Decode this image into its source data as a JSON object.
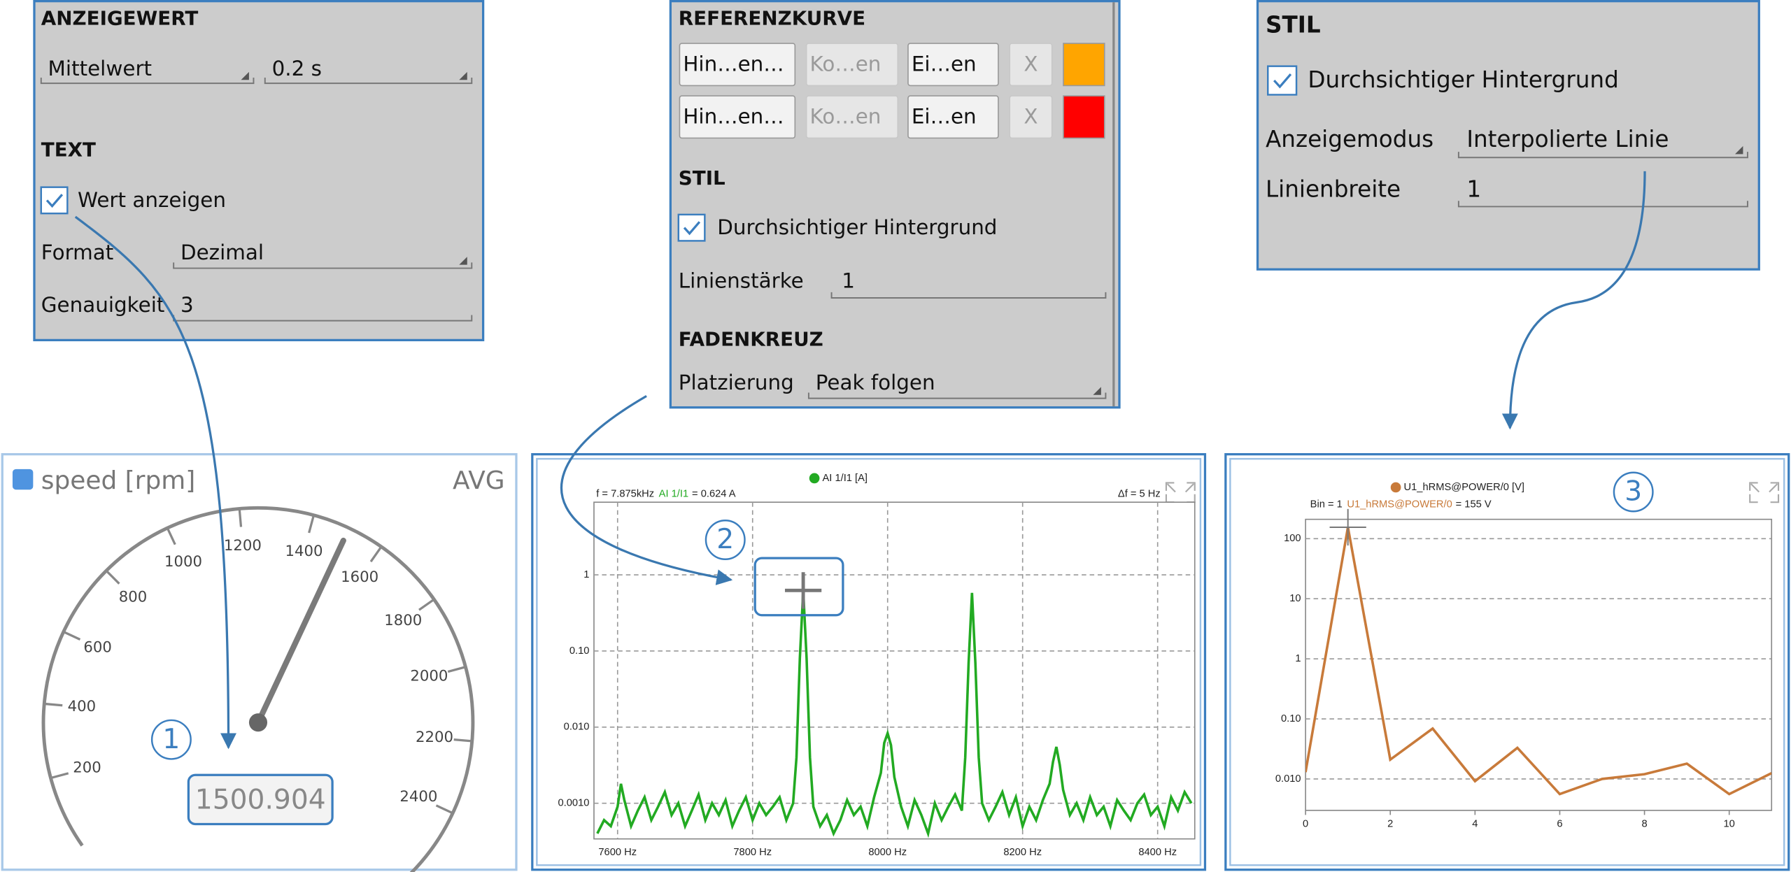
{
  "anzeigewert_panel": {
    "heading": "ANZEIGEWERT",
    "mode": "Mittelwert",
    "interval": "0.2 s",
    "text_heading": "TEXT",
    "show_value": "Wert anzeigen",
    "format_label": "Format",
    "format": "Dezimal",
    "precision_label": "Genauigkeit",
    "precision": "3"
  },
  "referenz_panel": {
    "heading": "REFERENZKURVE",
    "rows": [
      {
        "add": "Hin…en…",
        "color_label": "Ko…en",
        "settings": "Ei…en",
        "remove": "X",
        "color": "#ffa500"
      },
      {
        "add": "Hin…en…",
        "color_label": "Ko…en",
        "settings": "Ei…en",
        "remove": "X",
        "color": "#ff0000"
      }
    ],
    "style_heading": "STIL",
    "transparent": "Durchsichtiger Hintergrund",
    "line_label": "Linienstärke",
    "line_width": "1",
    "cross_heading": "FADENKREUZ",
    "placement_label": "Platzierung",
    "placement": "Peak folgen"
  },
  "stil_panel": {
    "heading": "STIL",
    "transparent": "Durchsichtiger Hintergrund",
    "mode_label": "Anzeigemodus",
    "mode": "Interpolierte Linie",
    "width_label": "Linienbreite",
    "width": "1"
  },
  "callouts": [
    "1",
    "2",
    "3"
  ],
  "chart_data": [
    {
      "type": "gauge",
      "title": "speed [rpm]",
      "mode": "AVG",
      "value": 1500.904,
      "lim": [
        0,
        2600
      ],
      "ticks": [
        200,
        400,
        600,
        800,
        1000,
        1200,
        1400,
        1600,
        1800,
        2000,
        2200,
        2400
      ],
      "color": "#7a7a7a",
      "legend_color": "#4f94e0"
    },
    {
      "type": "line",
      "readout": {
        "position": "f = 7.875kHz",
        "channel": "AI 1/I1",
        "value": "= 0.624 A"
      },
      "resolution": "Δf = 5 Hz",
      "log_y": true,
      "grid": "both",
      "x": [
        7570,
        7580,
        7590,
        7600,
        7605,
        7610,
        7620,
        7630,
        7640,
        7650,
        7660,
        7670,
        7680,
        7690,
        7700,
        7710,
        7720,
        7730,
        7740,
        7750,
        7760,
        7770,
        7780,
        7790,
        7800,
        7810,
        7820,
        7830,
        7840,
        7850,
        7860,
        7865,
        7870,
        7875,
        7880,
        7885,
        7890,
        7900,
        7910,
        7920,
        7930,
        7940,
        7950,
        7960,
        7970,
        7980,
        7990,
        7995,
        8000,
        8005,
        8010,
        8020,
        8030,
        8040,
        8050,
        8060,
        8070,
        8080,
        8090,
        8100,
        8110,
        8115,
        8120,
        8125,
        8130,
        8135,
        8140,
        8150,
        8160,
        8170,
        8180,
        8190,
        8200,
        8210,
        8220,
        8230,
        8240,
        8245,
        8250,
        8255,
        8260,
        8270,
        8280,
        8290,
        8300,
        8310,
        8320,
        8330,
        8340,
        8350,
        8360,
        8370,
        8380,
        8390,
        8400,
        8410,
        8420,
        8430,
        8440,
        8450
      ],
      "series": [
        {
          "name": "AI 1/I1 [A]",
          "color": "#22aa22",
          "values": [
            0.0004,
            0.0006,
            0.0005,
            0.0009,
            0.0018,
            0.0011,
            0.0005,
            0.0008,
            0.0012,
            0.0006,
            0.0009,
            0.0014,
            0.0007,
            0.001,
            0.0005,
            0.0008,
            0.0013,
            0.0006,
            0.001,
            0.0007,
            0.0011,
            0.0005,
            0.0008,
            0.0012,
            0.0006,
            0.001,
            0.0007,
            0.0009,
            0.0012,
            0.0006,
            0.001,
            0.004,
            0.08,
            0.624,
            0.08,
            0.004,
            0.0009,
            0.0005,
            0.0007,
            0.0004,
            0.0006,
            0.0011,
            0.0007,
            0.0009,
            0.0005,
            0.0012,
            0.0025,
            0.0062,
            0.0083,
            0.0058,
            0.0022,
            0.0009,
            0.0005,
            0.0011,
            0.0007,
            0.0004,
            0.001,
            0.0006,
            0.0009,
            0.0013,
            0.0008,
            0.004,
            0.07,
            0.58,
            0.07,
            0.004,
            0.001,
            0.0006,
            0.0009,
            0.0014,
            0.0007,
            0.0012,
            0.0005,
            0.0009,
            0.0006,
            0.0011,
            0.0018,
            0.0035,
            0.0055,
            0.0032,
            0.0015,
            0.0007,
            0.001,
            0.0006,
            0.0012,
            0.0007,
            0.0009,
            0.0005,
            0.0011,
            0.0008,
            0.0006,
            0.001,
            0.0013,
            0.0007,
            0.0009,
            0.0005,
            0.0012,
            0.0008,
            0.0014,
            0.001
          ]
        }
      ],
      "xlim": [
        7565,
        8455
      ],
      "ylim": [
        0.00034,
        9
      ],
      "xticks": [
        {
          "value": 7600,
          "label": "7600 Hz"
        },
        {
          "value": 7800,
          "label": "7800 Hz"
        },
        {
          "value": 8000,
          "label": "8000 Hz"
        },
        {
          "value": 8200,
          "label": "8200 Hz"
        },
        {
          "value": 8400,
          "label": "8400 Hz"
        }
      ],
      "yticks": [
        1,
        {
          "value": 0.1,
          "label": "0.10"
        },
        {
          "value": 0.01,
          "label": "0.010"
        },
        {
          "value": 0.001,
          "label": "0.0010"
        }
      ]
    },
    {
      "type": "line",
      "readout": {
        "position": "Bin = 1",
        "channel": "U1_hRMS@POWER/0",
        "value": "= 155 V"
      },
      "log_y": true,
      "grid": "y",
      "x": [
        0,
        1,
        2,
        3,
        4,
        5,
        6,
        7,
        8,
        9,
        10,
        11
      ],
      "series": [
        {
          "name": "U1_hRMS@POWER/0 [V]",
          "color": "#c87a3a",
          "values": [
            0.013,
            155,
            0.021,
            0.069,
            0.0092,
            0.033,
            0.0056,
            0.01,
            0.012,
            0.018,
            0.0056,
            0.0125
          ]
        }
      ],
      "xlim": [
        0,
        11
      ],
      "ylim": [
        0.003,
        210
      ],
      "xticks": [
        0,
        2,
        4,
        6,
        8,
        10
      ],
      "yticks": [
        100,
        10,
        1,
        {
          "value": 0.1,
          "label": "0.10"
        },
        {
          "value": 0.01,
          "label": "0.010"
        }
      ]
    }
  ]
}
